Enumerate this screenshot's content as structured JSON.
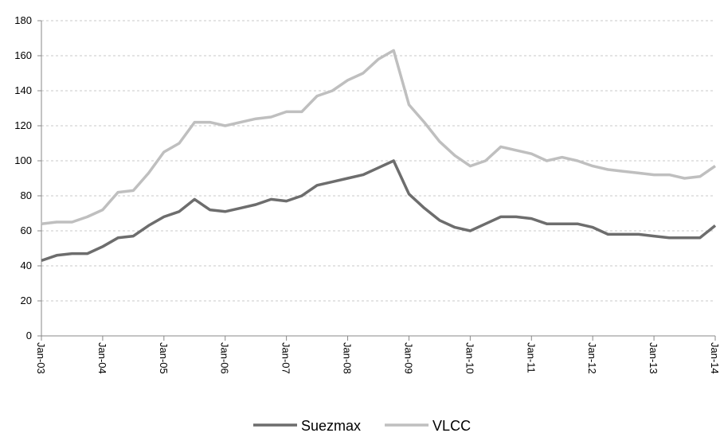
{
  "chart_data": {
    "type": "line",
    "categories": [
      "Jan-03",
      null,
      null,
      null,
      "Jan-04",
      null,
      null,
      null,
      "Jan-05",
      null,
      null,
      null,
      "Jan-06",
      null,
      null,
      null,
      "Jan-07",
      null,
      null,
      null,
      "Jan-08",
      null,
      null,
      null,
      "Jan-09",
      null,
      null,
      null,
      "Jan-10",
      null,
      null,
      null,
      "Jan-11",
      null,
      null,
      null,
      "Jan-12",
      null,
      null,
      null,
      "Jan-13",
      null,
      null,
      null,
      "Jan-14"
    ],
    "series": [
      {
        "name": "Suezmax",
        "color": "#6d6d6d",
        "values": [
          43,
          46,
          47,
          47,
          51,
          56,
          57,
          63,
          68,
          71,
          78,
          72,
          71,
          73,
          75,
          78,
          77,
          80,
          86,
          88,
          90,
          92,
          96,
          100,
          81,
          73,
          66,
          62,
          60,
          64,
          68,
          68,
          67,
          64,
          64,
          64,
          62,
          58,
          58,
          58,
          57,
          56,
          56,
          56,
          63
        ]
      },
      {
        "name": "VLCC",
        "color": "#bfbfbf",
        "values": [
          64,
          65,
          65,
          68,
          72,
          82,
          83,
          93,
          105,
          110,
          122,
          122,
          120,
          122,
          124,
          125,
          128,
          128,
          137,
          140,
          146,
          150,
          158,
          163,
          132,
          122,
          111,
          103,
          97,
          100,
          108,
          106,
          104,
          100,
          102,
          100,
          97,
          95,
          94,
          93,
          92,
          92,
          90,
          91,
          97
        ]
      }
    ],
    "ylim": [
      0,
      180
    ],
    "yticks": [
      0,
      20,
      40,
      60,
      80,
      100,
      120,
      140,
      160,
      180
    ],
    "grid": true,
    "legend": "bottom"
  }
}
